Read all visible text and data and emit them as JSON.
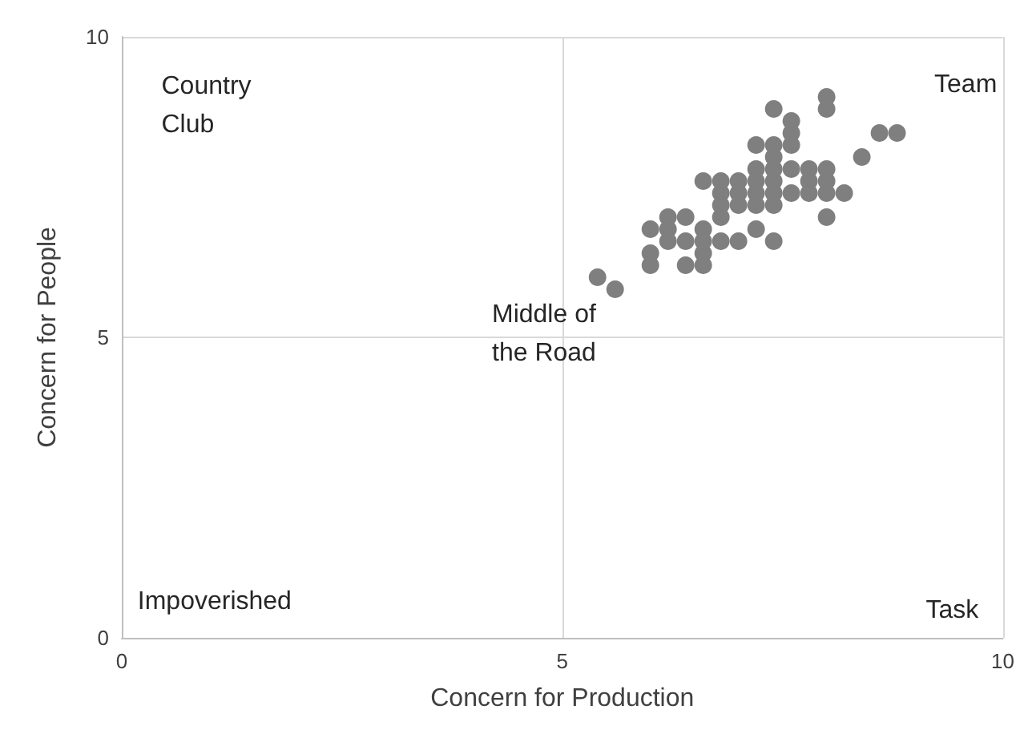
{
  "chart_data": {
    "type": "scatter",
    "xlabel": "Concern for Production",
    "ylabel": "Concern for People",
    "xlim": [
      0,
      10
    ],
    "ylim": [
      0,
      10
    ],
    "xticks": [
      0,
      5,
      10
    ],
    "yticks": [
      0,
      5,
      10
    ],
    "grid": true,
    "marker": "circle",
    "series": [
      {
        "color": "#7f7f7f",
        "x": [
          5.4,
          5.6,
          6.0,
          6.0,
          6.0,
          6.2,
          6.2,
          6.2,
          6.4,
          6.4,
          6.4,
          6.6,
          6.6,
          6.6,
          6.6,
          6.6,
          6.8,
          6.8,
          6.8,
          6.8,
          6.8,
          7.0,
          7.0,
          7.0,
          7.0,
          7.2,
          7.2,
          7.2,
          7.2,
          7.2,
          7.2,
          7.4,
          7.4,
          7.4,
          7.4,
          7.4,
          7.4,
          7.4,
          7.4,
          7.6,
          7.6,
          7.6,
          7.6,
          7.6,
          7.8,
          7.8,
          7.8,
          8.0,
          8.0,
          8.0,
          8.0,
          8.0,
          8.0,
          8.2,
          8.4,
          8.6,
          8.8
        ],
        "values": [
          6.0,
          5.8,
          6.8,
          6.4,
          6.2,
          7.0,
          6.8,
          6.6,
          7.0,
          6.6,
          6.2,
          7.6,
          6.8,
          6.4,
          6.2,
          6.6,
          7.6,
          7.4,
          7.2,
          7.0,
          6.6,
          7.6,
          7.4,
          7.2,
          6.6,
          8.2,
          7.8,
          7.6,
          7.4,
          7.2,
          6.8,
          8.8,
          8.2,
          8.0,
          7.8,
          7.6,
          7.2,
          6.6,
          7.4,
          8.6,
          8.4,
          8.2,
          7.8,
          7.4,
          7.8,
          7.6,
          7.4,
          9.0,
          8.8,
          7.8,
          7.6,
          7.0,
          7.4,
          7.4,
          8.0,
          8.4,
          8.4
        ]
      }
    ],
    "annotations": [
      "Country\nClub",
      "Team",
      "Middle of\nthe Road",
      "Impoverished",
      "Task"
    ]
  }
}
